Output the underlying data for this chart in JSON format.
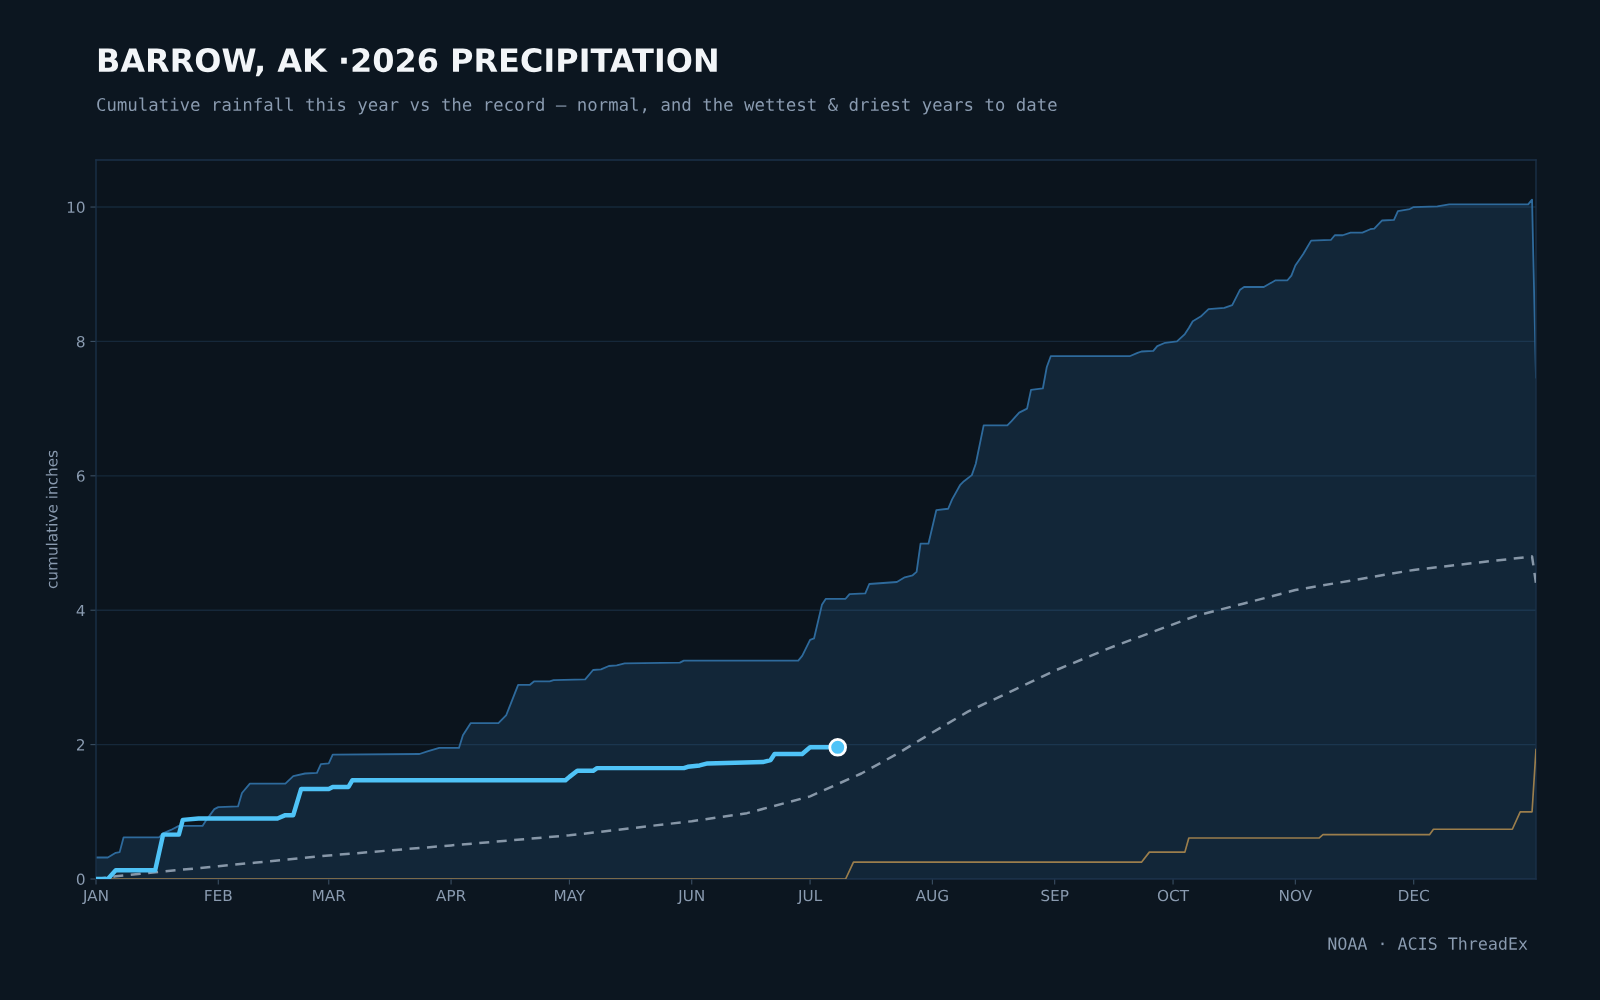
{
  "chart_data": {
    "type": "line",
    "title": "BARROW, AK ·2026 PRECIPITATION",
    "subtitle": "Cumulative rainfall this year vs the record — normal, and the wettest & driest years to date",
    "ylabel": "cumulative inches",
    "annotations": [
      "NOAA · ACIS ThreadEx"
    ],
    "xlim": [
      "2026-01-01",
      "2027-01-01"
    ],
    "xticks": [
      {
        "value": "2026-01-01",
        "label": "JAN"
      },
      {
        "value": "2026-02-01",
        "label": "FEB"
      },
      {
        "value": "2026-03-01",
        "label": "MAR"
      },
      {
        "value": "2026-04-01",
        "label": "APR"
      },
      {
        "value": "2026-05-01",
        "label": "MAY"
      },
      {
        "value": "2026-06-01",
        "label": "JUN"
      },
      {
        "value": "2026-07-01",
        "label": "JUL"
      },
      {
        "value": "2026-08-01",
        "label": "AUG"
      },
      {
        "value": "2026-09-01",
        "label": "SEP"
      },
      {
        "value": "2026-10-01",
        "label": "OCT"
      },
      {
        "value": "2026-11-01",
        "label": "NOV"
      },
      {
        "value": "2026-12-01",
        "label": "DEC"
      }
    ],
    "ylim": [
      0,
      10.7
    ],
    "yticks": [
      0,
      2,
      4,
      6,
      8,
      10
    ],
    "grid": "y",
    "legend": false,
    "series": [
      {
        "type": "area",
        "color": "#2e6a9c",
        "x": [
          "2026-01-01",
          "2026-01-04",
          "2026-01-06",
          "2026-01-07",
          "2026-01-08",
          "2026-01-17",
          "2026-01-18",
          "2026-01-20",
          "2026-01-22",
          "2026-01-28",
          "2026-01-29",
          "2026-01-31",
          "2026-02-01",
          "2026-02-06",
          "2026-02-07",
          "2026-02-09",
          "2026-02-18",
          "2026-02-20",
          "2026-02-23",
          "2026-02-26",
          "2026-02-27",
          "2026-03-01",
          "2026-03-02",
          "2026-03-24",
          "2026-03-26",
          "2026-03-29",
          "2026-04-03",
          "2026-04-04",
          "2026-04-06",
          "2026-04-13",
          "2026-04-15",
          "2026-04-18",
          "2026-04-21",
          "2026-04-22",
          "2026-04-26",
          "2026-04-27",
          "2026-05-05",
          "2026-05-07",
          "2026-05-09",
          "2026-05-11",
          "2026-05-13",
          "2026-05-15",
          "2026-05-29",
          "2026-05-30",
          "2026-06-28",
          "2026-06-29",
          "2026-07-01",
          "2026-07-02",
          "2026-07-04",
          "2026-07-05",
          "2026-07-10",
          "2026-07-11",
          "2026-07-15",
          "2026-07-16",
          "2026-07-23",
          "2026-07-25",
          "2026-07-27",
          "2026-07-28",
          "2026-07-29",
          "2026-07-31",
          "2026-08-02",
          "2026-08-05",
          "2026-08-06",
          "2026-08-08",
          "2026-08-09",
          "2026-08-11",
          "2026-08-12",
          "2026-08-14",
          "2026-08-20",
          "2026-08-21",
          "2026-08-23",
          "2026-08-25",
          "2026-08-26",
          "2026-08-29",
          "2026-08-30",
          "2026-08-31",
          "2026-09-20",
          "2026-09-22",
          "2026-09-23",
          "2026-09-26",
          "2026-09-27",
          "2026-09-29",
          "2026-10-02",
          "2026-10-04",
          "2026-10-05",
          "2026-10-06",
          "2026-10-08",
          "2026-10-10",
          "2026-10-14",
          "2026-10-16",
          "2026-10-18",
          "2026-10-19",
          "2026-10-24",
          "2026-10-27",
          "2026-10-30",
          "2026-10-31",
          "2026-11-01",
          "2026-11-03",
          "2026-11-05",
          "2026-11-10",
          "2026-11-11",
          "2026-11-13",
          "2026-11-15",
          "2026-11-18",
          "2026-11-20",
          "2026-11-21",
          "2026-11-23",
          "2026-11-26",
          "2026-11-27",
          "2026-11-30",
          "2026-12-01",
          "2026-12-07",
          "2026-12-10",
          "2026-12-30",
          "2026-12-31",
          "2027-01-01"
        ],
        "values": [
          0.32,
          0.32,
          0.39,
          0.4,
          0.62,
          0.62,
          0.68,
          0.73,
          0.79,
          0.79,
          0.88,
          1.04,
          1.07,
          1.08,
          1.28,
          1.42,
          1.42,
          1.53,
          1.57,
          1.58,
          1.71,
          1.72,
          1.85,
          1.86,
          1.9,
          1.95,
          1.95,
          2.14,
          2.32,
          2.32,
          2.44,
          2.89,
          2.89,
          2.94,
          2.94,
          2.96,
          2.97,
          3.11,
          3.12,
          3.17,
          3.18,
          3.21,
          3.22,
          3.25,
          3.25,
          3.32,
          3.56,
          3.58,
          4.08,
          4.17,
          4.17,
          4.24,
          4.25,
          4.39,
          4.42,
          4.49,
          4.52,
          4.57,
          4.99,
          4.99,
          5.49,
          5.51,
          5.65,
          5.86,
          5.92,
          6.01,
          6.18,
          6.75,
          6.75,
          6.81,
          6.94,
          7.0,
          7.28,
          7.3,
          7.62,
          7.78,
          7.78,
          7.83,
          7.85,
          7.86,
          7.93,
          7.98,
          8.0,
          8.11,
          8.2,
          8.3,
          8.37,
          8.48,
          8.5,
          8.54,
          8.77,
          8.81,
          8.81,
          8.91,
          8.91,
          8.98,
          9.13,
          9.3,
          9.5,
          9.51,
          9.58,
          9.58,
          9.62,
          9.62,
          9.67,
          9.68,
          9.8,
          9.81,
          9.94,
          9.97,
          10.0,
          10.01,
          10.04,
          10.04,
          10.11,
          7.46
        ]
      },
      {
        "color": "#9b7e4c",
        "line_style": "solid",
        "x": [
          "2026-01-01",
          "2026-07-10",
          "2026-07-12",
          "2026-09-23",
          "2026-09-25",
          "2026-10-04",
          "2026-10-05",
          "2026-11-07",
          "2026-11-08",
          "2026-12-05",
          "2026-12-06",
          "2026-12-26",
          "2026-12-28",
          "2026-12-31",
          "2027-01-01"
        ],
        "values": [
          0,
          0,
          0.25,
          0.25,
          0.4,
          0.4,
          0.61,
          0.61,
          0.66,
          0.66,
          0.74,
          0.74,
          1.0,
          1.0,
          1.93
        ]
      },
      {
        "color": "#8797a8",
        "line_style": "dashed",
        "x": [
          "2026-01-01",
          "2026-01-06",
          "2026-01-16",
          "2026-02-01",
          "2026-03-01",
          "2026-04-01",
          "2026-05-01",
          "2026-06-01",
          "2026-06-15",
          "2026-07-01",
          "2026-07-14",
          "2026-07-23",
          "2026-08-01",
          "2026-08-10",
          "2026-09-01",
          "2026-09-15",
          "2026-10-01",
          "2026-10-07",
          "2026-10-19",
          "2026-11-01",
          "2026-12-01",
          "2026-12-31",
          "2027-01-01"
        ],
        "values": [
          0,
          0.04,
          0.1,
          0.19,
          0.35,
          0.5,
          0.65,
          0.86,
          0.98,
          1.23,
          1.57,
          1.86,
          2.18,
          2.49,
          3.1,
          3.44,
          3.79,
          3.92,
          4.1,
          4.3,
          4.6,
          4.8,
          4.4
        ]
      },
      {
        "color": "#4fc3f7",
        "line_style": "solid",
        "x": [
          "2026-01-01",
          "2026-01-04",
          "2026-01-06",
          "2026-01-16",
          "2026-01-18",
          "2026-01-22",
          "2026-01-23",
          "2026-01-27",
          "2026-02-16",
          "2026-02-18",
          "2026-02-20",
          "2026-02-22",
          "2026-03-01",
          "2026-03-02",
          "2026-03-06",
          "2026-03-07",
          "2026-04-30",
          "2026-05-01",
          "2026-05-03",
          "2026-05-07",
          "2026-05-08",
          "2026-05-30",
          "2026-05-31",
          "2026-06-03",
          "2026-06-05",
          "2026-06-19",
          "2026-06-21",
          "2026-06-22",
          "2026-06-29",
          "2026-07-01",
          "2026-07-08"
        ],
        "values": [
          0,
          0,
          0.13,
          0.13,
          0.66,
          0.66,
          0.88,
          0.9,
          0.9,
          0.95,
          0.95,
          1.34,
          1.34,
          1.37,
          1.37,
          1.47,
          1.47,
          1.52,
          1.61,
          1.61,
          1.65,
          1.65,
          1.67,
          1.69,
          1.72,
          1.74,
          1.77,
          1.86,
          1.86,
          1.96,
          1.96
        ]
      },
      {
        "type": "scatter",
        "color": "#4fc3f7",
        "marker": "circle",
        "x": [
          "2026-07-08"
        ],
        "values": [
          1.96
        ]
      }
    ]
  }
}
